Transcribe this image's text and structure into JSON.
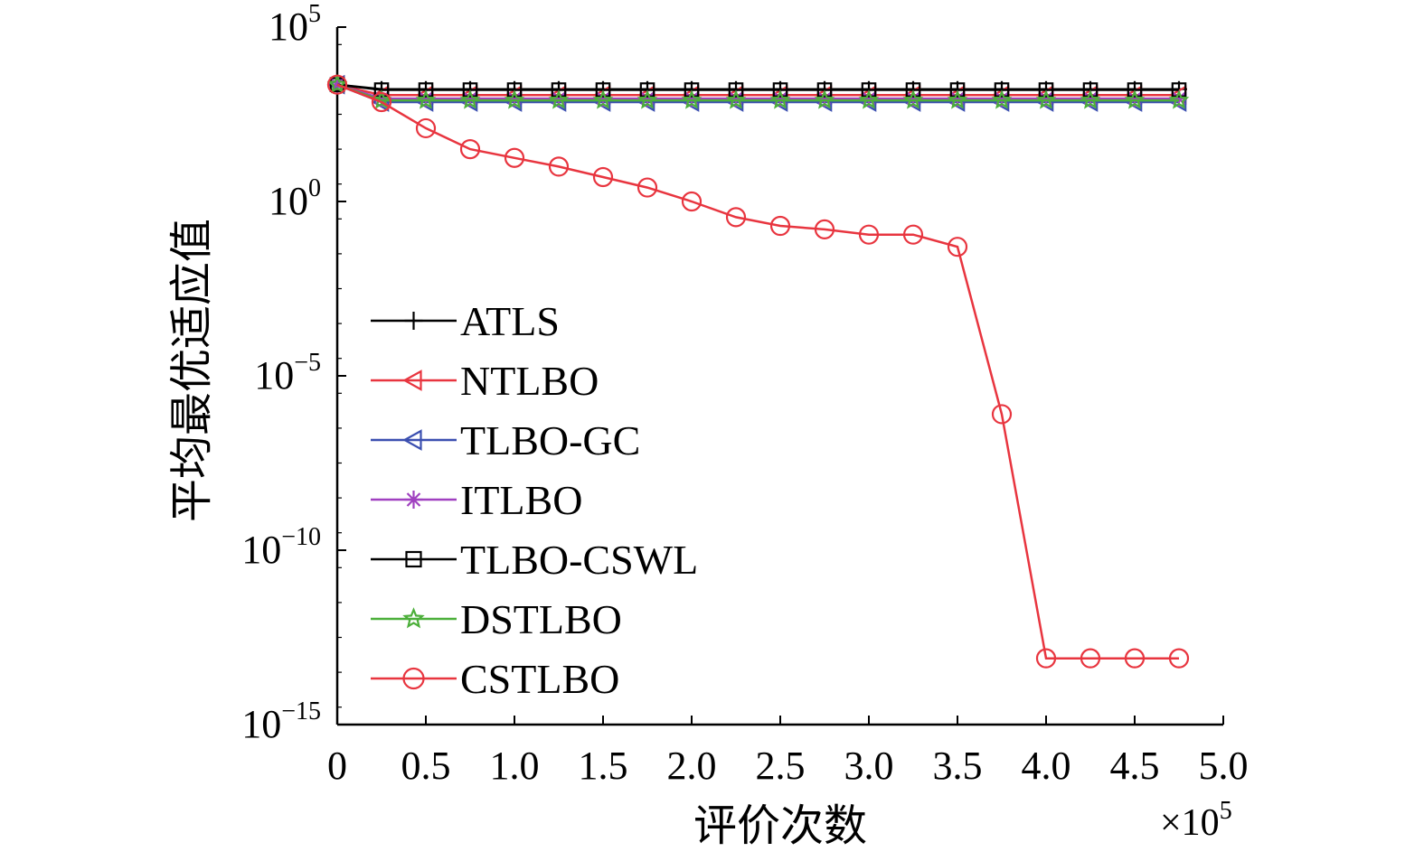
{
  "chart_data": {
    "type": "line",
    "title": "",
    "xlabel": "评价次数",
    "ylabel": "平均最优适应值",
    "x_multiplier_base": "×10",
    "x_multiplier_exp": "5",
    "xlim": [
      0,
      5.0
    ],
    "ylim_log10": [
      -15,
      5
    ],
    "y_scale": "log",
    "grid": false,
    "legend_position": "lower-left",
    "x_ticks": [
      {
        "value": 0,
        "label": "0"
      },
      {
        "value": 0.5,
        "label": "0.5"
      },
      {
        "value": 1.0,
        "label": "1.0"
      },
      {
        "value": 1.5,
        "label": "1.5"
      },
      {
        "value": 2.0,
        "label": "2.0"
      },
      {
        "value": 2.5,
        "label": "2.5"
      },
      {
        "value": 3.0,
        "label": "3.0"
      },
      {
        "value": 3.5,
        "label": "3.5"
      },
      {
        "value": 4.0,
        "label": "4.0"
      },
      {
        "value": 4.5,
        "label": "4.5"
      },
      {
        "value": 5.0,
        "label": "5.0"
      }
    ],
    "y_ticks": [
      {
        "log10": 5,
        "base": "10",
        "exp": "5"
      },
      {
        "log10": 0,
        "base": "10",
        "exp": "0"
      },
      {
        "log10": -5,
        "base": "10",
        "exp": "−5"
      },
      {
        "log10": -10,
        "base": "10",
        "exp": "−10"
      },
      {
        "log10": -15,
        "base": "10",
        "exp": "−15"
      }
    ],
    "x": [
      0,
      0.25,
      0.5,
      0.75,
      1.0,
      1.25,
      1.5,
      1.75,
      2.0,
      2.25,
      2.5,
      2.75,
      3.0,
      3.25,
      3.5,
      3.75,
      4.0,
      4.25,
      4.5,
      4.75
    ],
    "series": [
      {
        "name": "ATLS",
        "color": "#000000",
        "marker": "plus",
        "log10_values": [
          3.35,
          3.22,
          3.22,
          3.22,
          3.22,
          3.22,
          3.22,
          3.22,
          3.22,
          3.22,
          3.22,
          3.22,
          3.22,
          3.22,
          3.22,
          3.22,
          3.22,
          3.22,
          3.22,
          3.22
        ]
      },
      {
        "name": "NTLBO",
        "color": "#e8353f",
        "marker": "triangle-left",
        "log10_values": [
          3.35,
          3.05,
          3.05,
          3.05,
          3.05,
          3.05,
          3.05,
          3.05,
          3.05,
          3.05,
          3.05,
          3.05,
          3.05,
          3.05,
          3.05,
          3.05,
          3.05,
          3.05,
          3.05,
          3.05
        ]
      },
      {
        "name": "TLBO-GC",
        "color": "#3b4fb0",
        "marker": "triangle-left",
        "log10_values": [
          3.35,
          2.85,
          2.85,
          2.85,
          2.85,
          2.85,
          2.85,
          2.85,
          2.85,
          2.85,
          2.85,
          2.85,
          2.85,
          2.85,
          2.85,
          2.85,
          2.85,
          2.85,
          2.85,
          2.85
        ]
      },
      {
        "name": "ITLBO",
        "color": "#a040c0",
        "marker": "asterisk",
        "log10_values": [
          3.35,
          2.95,
          2.95,
          2.95,
          2.95,
          2.95,
          2.95,
          2.95,
          2.95,
          2.95,
          2.95,
          2.95,
          2.95,
          2.95,
          2.95,
          2.95,
          2.95,
          2.95,
          2.95,
          2.95
        ]
      },
      {
        "name": "TLBO-CSWL",
        "color": "#000000",
        "marker": "square",
        "log10_values": [
          3.35,
          3.2,
          3.2,
          3.2,
          3.2,
          3.2,
          3.2,
          3.2,
          3.2,
          3.2,
          3.2,
          3.2,
          3.2,
          3.2,
          3.2,
          3.2,
          3.2,
          3.2,
          3.2,
          3.2
        ]
      },
      {
        "name": "DSTLBO",
        "color": "#4caf3a",
        "marker": "star",
        "log10_values": [
          3.35,
          2.9,
          2.9,
          2.9,
          2.9,
          2.9,
          2.9,
          2.9,
          2.9,
          2.9,
          2.9,
          2.9,
          2.9,
          2.9,
          2.9,
          2.9,
          2.9,
          2.9,
          2.9,
          2.9
        ]
      },
      {
        "name": "CSTLBO",
        "color": "#e8353f",
        "marker": "circle",
        "log10_values": [
          3.35,
          2.85,
          2.1,
          1.5,
          1.25,
          1.0,
          0.7,
          0.4,
          0.0,
          -0.45,
          -0.7,
          -0.8,
          -0.95,
          -0.95,
          -1.3,
          -6.1,
          -13.1,
          -13.1,
          -13.1,
          -13.1
        ]
      }
    ]
  }
}
